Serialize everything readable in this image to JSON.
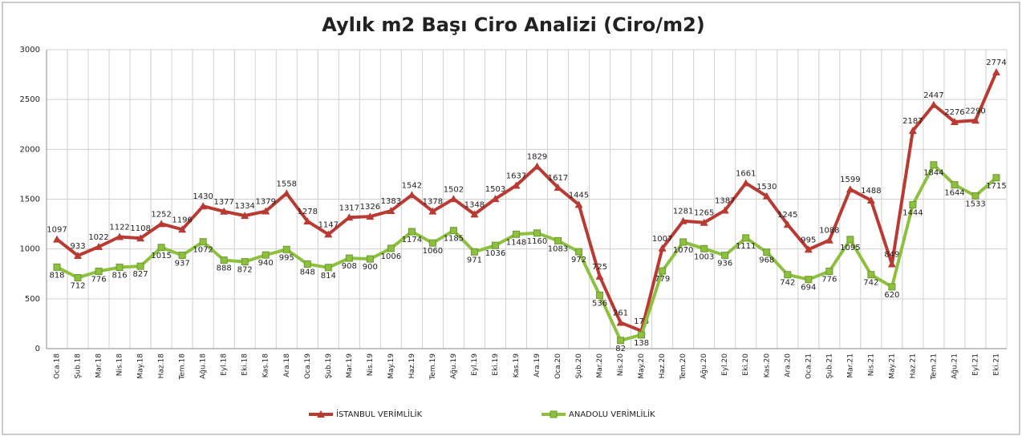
{
  "chart_data": {
    "type": "line",
    "title": "Aylık m2 Başı Ciro Analizi (Ciro/m2)",
    "categories": [
      "Oca.18",
      "Şub.18",
      "Mar.18",
      "Nis.18",
      "May.18",
      "Haz.18",
      "Tem.18",
      "Ağu.18",
      "Eyl.18",
      "Eki.18",
      "Kas.18",
      "Ara.18",
      "Oca.19",
      "Şub.19",
      "Mar.19",
      "Nis.19",
      "May.19",
      "Haz.19",
      "Tem.19",
      "Ağu.19",
      "Eyl.19",
      "Eki.19",
      "Kas.19",
      "Ara.19",
      "Oca.20",
      "Şub.20",
      "Mar.20",
      "Nis.20",
      "May.20",
      "Haz.20",
      "Tem.20",
      "Ağu.20",
      "Eyl.20",
      "Eki.20",
      "Kas.20",
      "Ara.20",
      "Oca.21",
      "Şub.21",
      "Mar.21",
      "Nis.21",
      "May.21",
      "Haz.21",
      "Tem.21",
      "Ağu.21",
      "Eyl.21",
      "Eki.21"
    ],
    "series": [
      {
        "name": "İSTANBUL VERİMLİLİK",
        "color": "#b93a32",
        "marker": "triangle",
        "values": [
          1097,
          933,
          1022,
          1122,
          1108,
          1252,
          1196,
          1430,
          1377,
          1334,
          1379,
          1558,
          1278,
          1147,
          1317,
          1326,
          1383,
          1542,
          1378,
          1502,
          1348,
          1503,
          1637,
          1829,
          1617,
          1445,
          725,
          261,
          178,
          1007,
          1281,
          1265,
          1387,
          1661,
          1530,
          1245,
          995,
          1088,
          1599,
          1488,
          849,
          2187,
          2447,
          2276,
          2290,
          2774
        ]
      },
      {
        "name": "ANADOLU VERİMLİLİK",
        "color": "#8dc03f",
        "marker": "square",
        "values": [
          818,
          712,
          776,
          816,
          827,
          1015,
          937,
          1072,
          888,
          872,
          940,
          995,
          848,
          814,
          908,
          900,
          1006,
          1174,
          1060,
          1185,
          971,
          1036,
          1148,
          1160,
          1083,
          972,
          536,
          82,
          138,
          779,
          1070,
          1003,
          936,
          1111,
          968,
          742,
          694,
          776,
          1095,
          742,
          620,
          1444,
          1844,
          1644,
          1533,
          1715
        ]
      }
    ],
    "ylim": [
      0,
      3000
    ],
    "yticks": [
      0,
      500,
      1000,
      1500,
      2000,
      2500,
      3000
    ],
    "grid": true,
    "legend": "bottom"
  }
}
